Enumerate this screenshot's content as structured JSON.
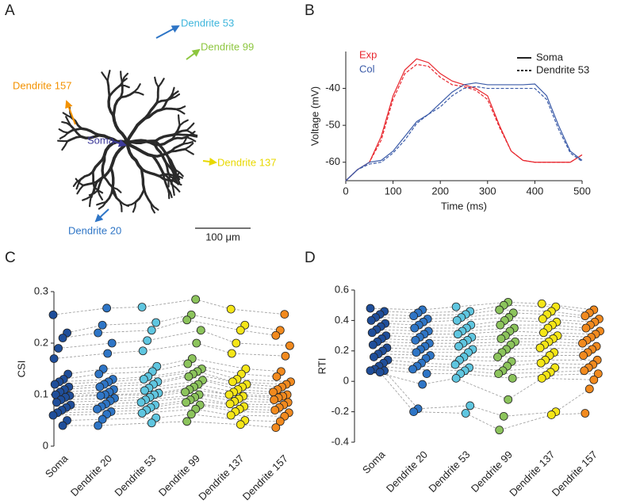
{
  "panel_labels": [
    "A",
    "B",
    "C",
    "D"
  ],
  "morphology": {
    "labels": [
      "Dendrite 53",
      "Dendrite 99",
      "Dendrite 157",
      "Soma",
      "Dendrite 137",
      "Dendrite 20"
    ],
    "scale_bar": "100 μm"
  },
  "chart_data": [
    {
      "type": "line",
      "xlabel": "Time (ms)",
      "ylabel": "Voltage (mV)",
      "x": [
        0,
        25,
        50,
        75,
        100,
        125,
        150,
        175,
        200,
        225,
        250,
        275,
        300,
        325,
        350,
        375,
        400,
        425,
        450,
        475,
        500
      ],
      "xlim": [
        0,
        500
      ],
      "xticks": [
        0,
        100,
        200,
        300,
        400,
        500
      ],
      "ylim": [
        -65,
        -30
      ],
      "yticks": [
        -60,
        -50,
        -40
      ],
      "line_styles": [
        "Soma",
        "Dendrite 53"
      ],
      "series": [
        {
          "name": "Exp",
          "color": "#e8262d",
          "values": [
            -65,
            -62,
            -60,
            -53,
            -42,
            -35,
            -32,
            -33,
            -36,
            -38,
            -39,
            -40,
            -42,
            -50,
            -57,
            -59.5,
            -60,
            -60,
            -60,
            -60,
            -58
          ],
          "dendrite_values": [
            -65,
            -62,
            -60,
            -54,
            -43,
            -36,
            -33.5,
            -34,
            -37,
            -39,
            -39.5,
            -40.5,
            -43,
            -50.5,
            -57,
            -59.5,
            -60,
            -60,
            -60,
            -60,
            -58
          ]
        },
        {
          "name": "Col",
          "color": "#3b5ba8",
          "values": [
            -65,
            -62,
            -60,
            -59.5,
            -57,
            -53,
            -49,
            -47,
            -44,
            -41,
            -39,
            -38.5,
            -39,
            -39,
            -39,
            -39,
            -38.8,
            -42,
            -50,
            -57,
            -59.5
          ],
          "dendrite_values": [
            -65,
            -62,
            -60.5,
            -60,
            -57.5,
            -54,
            -49.5,
            -47,
            -45,
            -42,
            -40,
            -39.5,
            -40,
            -40,
            -40,
            -40,
            -40,
            -43,
            -51,
            -57.5,
            -59.8
          ]
        }
      ]
    },
    {
      "type": "paired-scatter",
      "ylabel": "CSI",
      "categories": [
        "Soma",
        "Dendrite 20",
        "Dendrite 53",
        "Dendrite 99",
        "Dendrite 137",
        "Dendrite 157"
      ],
      "colors": [
        "#1f4e9a",
        "#2e75c6",
        "#5fc6e0",
        "#8cc45c",
        "#f5e617",
        "#f28a1e"
      ],
      "ylim": [
        0,
        0.3
      ],
      "yticks": [
        0,
        0.1,
        0.2,
        0.3
      ],
      "values": [
        [
          0.255,
          0.22,
          0.21,
          0.19,
          0.17,
          0.14,
          0.13,
          0.125,
          0.12,
          0.115,
          0.11,
          0.105,
          0.1,
          0.098,
          0.095,
          0.09,
          0.085,
          0.08,
          0.075,
          0.07,
          0.065,
          0.06,
          0.05,
          0.04
        ],
        [
          0.268,
          0.235,
          0.22,
          0.2,
          0.18,
          0.15,
          0.14,
          0.13,
          0.125,
          0.12,
          0.115,
          0.11,
          0.105,
          0.1,
          0.098,
          0.093,
          0.088,
          0.082,
          0.077,
          0.072,
          0.067,
          0.062,
          0.052,
          0.04
        ],
        [
          0.27,
          0.24,
          0.225,
          0.205,
          0.185,
          0.155,
          0.145,
          0.135,
          0.13,
          0.125,
          0.12,
          0.113,
          0.108,
          0.103,
          0.1,
          0.095,
          0.09,
          0.085,
          0.08,
          0.075,
          0.07,
          0.064,
          0.055,
          0.045
        ],
        [
          0.285,
          0.255,
          0.245,
          0.225,
          0.2,
          0.17,
          0.16,
          0.15,
          0.145,
          0.14,
          0.135,
          0.128,
          0.12,
          0.115,
          0.11,
          0.105,
          0.1,
          0.095,
          0.09,
          0.085,
          0.08,
          0.072,
          0.062,
          0.048
        ],
        [
          0.266,
          0.235,
          0.225,
          0.2,
          0.18,
          0.15,
          0.14,
          0.13,
          0.125,
          0.12,
          0.115,
          0.11,
          0.105,
          0.1,
          0.097,
          0.092,
          0.087,
          0.082,
          0.077,
          0.072,
          0.067,
          0.06,
          0.05,
          0.042
        ],
        [
          0.256,
          0.225,
          0.215,
          0.195,
          0.175,
          0.145,
          0.135,
          0.125,
          0.12,
          0.115,
          0.11,
          0.105,
          0.1,
          0.097,
          0.094,
          0.09,
          0.085,
          0.08,
          0.075,
          0.07,
          0.065,
          0.058,
          0.048,
          0.036
        ]
      ]
    },
    {
      "type": "paired-scatter",
      "ylabel": "RTI",
      "categories": [
        "Soma",
        "Dendrite 20",
        "Dendrite 53",
        "Dendrite 99",
        "Dendrite 137",
        "Dendrite 157"
      ],
      "colors": [
        "#1f4e9a",
        "#2e75c6",
        "#5fc6e0",
        "#8cc45c",
        "#f5e617",
        "#f28a1e"
      ],
      "ylim": [
        -0.4,
        0.6
      ],
      "yticks": [
        -0.4,
        -0.2,
        0,
        0.2,
        0.4,
        0.6
      ],
      "values": [
        [
          0.48,
          0.46,
          0.44,
          0.42,
          0.4,
          0.38,
          0.36,
          0.34,
          0.32,
          0.3,
          0.28,
          0.26,
          0.24,
          0.22,
          0.2,
          0.18,
          0.16,
          0.14,
          0.12,
          0.1,
          0.08,
          0.07,
          0.07,
          0.06
        ],
        [
          0.47,
          0.45,
          0.43,
          0.41,
          0.39,
          0.37,
          0.35,
          0.33,
          0.31,
          0.29,
          0.27,
          0.25,
          0.23,
          0.21,
          0.19,
          0.17,
          0.15,
          0.12,
          0.1,
          0.08,
          0.05,
          -0.02,
          -0.18,
          -0.2
        ],
        [
          0.49,
          0.46,
          0.44,
          0.42,
          0.4,
          0.37,
          0.35,
          0.33,
          0.31,
          0.29,
          0.27,
          0.25,
          0.23,
          0.21,
          0.19,
          0.16,
          0.14,
          0.11,
          0.09,
          0.07,
          0.05,
          0.02,
          -0.16,
          -0.21
        ],
        [
          0.52,
          0.5,
          0.47,
          0.45,
          0.42,
          0.4,
          0.37,
          0.35,
          0.33,
          0.3,
          0.28,
          0.26,
          0.24,
          0.21,
          0.19,
          0.16,
          0.13,
          0.1,
          0.07,
          0.05,
          0.02,
          -0.12,
          -0.23,
          -0.32
        ],
        [
          0.51,
          0.49,
          0.46,
          0.44,
          0.41,
          0.39,
          0.37,
          0.35,
          0.32,
          0.3,
          0.28,
          0.26,
          0.24,
          0.22,
          0.19,
          0.17,
          0.14,
          0.12,
          0.09,
          0.06,
          0.04,
          0.02,
          -0.2,
          -0.22
        ],
        [
          0.47,
          0.45,
          0.43,
          0.41,
          0.39,
          0.37,
          0.35,
          0.33,
          0.31,
          0.29,
          0.27,
          0.25,
          0.23,
          0.21,
          0.19,
          0.17,
          0.14,
          0.11,
          0.09,
          0.07,
          0.05,
          0.01,
          -0.05,
          -0.21
        ]
      ]
    }
  ]
}
